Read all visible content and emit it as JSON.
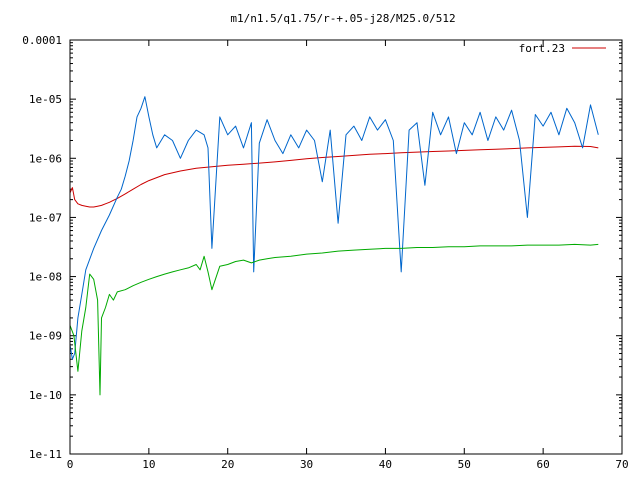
{
  "chart_data": {
    "type": "line",
    "title": "m1/n1.5/q1.75/r-+.05-j28/M25.0/512",
    "xlabel": "",
    "ylabel": "",
    "xlim": [
      0,
      70
    ],
    "ylim": [
      1e-11,
      0.0001
    ],
    "y_scale": "log",
    "grid": false,
    "legend_position": "top-right",
    "x_ticks": [
      "0",
      "10",
      "20",
      "30",
      "40",
      "50",
      "60",
      "70"
    ],
    "x_tick_values": [
      0,
      10,
      20,
      30,
      40,
      50,
      60,
      70
    ],
    "y_ticks": [
      "1e-11",
      "1e-10",
      "1e-09",
      "1e-08",
      "1e-07",
      "1e-06",
      "1e-05",
      "0.0001"
    ],
    "y_tick_values": [
      1e-11,
      1e-10,
      1e-09,
      1e-08,
      1e-07,
      1e-06,
      1e-05,
      0.0001
    ],
    "series": [
      {
        "name": "fort.23",
        "color": "#cc0000",
        "in_legend": true,
        "x": [
          0,
          0.3,
          0.6,
          1,
          1.5,
          2,
          2.5,
          3,
          3.5,
          4,
          4.5,
          5,
          5.5,
          6,
          7,
          8,
          9,
          10,
          12,
          14,
          16,
          18,
          20,
          22,
          24,
          26,
          28,
          30,
          32,
          34,
          36,
          38,
          40,
          42,
          44,
          46,
          48,
          50,
          52,
          54,
          56,
          58,
          60,
          62,
          64,
          66,
          67
        ],
        "y": [
          2.6e-07,
          3.2e-07,
          2e-07,
          1.7e-07,
          1.6e-07,
          1.55e-07,
          1.5e-07,
          1.5e-07,
          1.55e-07,
          1.6e-07,
          1.7e-07,
          1.8e-07,
          1.95e-07,
          2.1e-07,
          2.5e-07,
          3e-07,
          3.6e-07,
          4.2e-07,
          5.3e-07,
          6.1e-07,
          6.8e-07,
          7.2e-07,
          7.6e-07,
          7.9e-07,
          8.3e-07,
          8.7e-07,
          9.2e-07,
          9.8e-07,
          1.03e-06,
          1.07e-06,
          1.12e-06,
          1.17e-06,
          1.2e-06,
          1.24e-06,
          1.27e-06,
          1.3e-06,
          1.33e-06,
          1.36e-06,
          1.39e-06,
          1.42e-06,
          1.46e-06,
          1.5e-06,
          1.53e-06,
          1.56e-06,
          1.6e-06,
          1.58e-06,
          1.5e-06
        ]
      },
      {
        "name": "",
        "color": "#0066cc",
        "in_legend": false,
        "x": [
          0,
          0.3,
          0.6,
          1,
          1.5,
          2,
          3,
          4,
          5,
          6,
          6.5,
          7,
          7.5,
          8,
          8.5,
          9,
          9.5,
          10,
          10.5,
          11,
          12,
          13,
          14,
          15,
          16,
          17,
          17.5,
          18,
          19,
          20,
          21,
          22,
          23,
          23.3,
          24,
          25,
          26,
          27,
          28,
          29,
          30,
          31,
          32,
          33,
          34,
          35,
          36,
          37,
          38,
          39,
          40,
          41,
          42,
          43,
          44,
          45,
          46,
          47,
          48,
          49,
          50,
          51,
          52,
          53,
          54,
          55,
          56,
          57,
          58,
          59,
          60,
          61,
          62,
          63,
          64,
          65,
          66,
          67
        ],
        "y": [
          7e-10,
          4e-10,
          5e-10,
          2e-09,
          5e-09,
          1.3e-08,
          3e-08,
          6e-08,
          1.1e-07,
          2.2e-07,
          3e-07,
          5e-07,
          9e-07,
          2e-06,
          5e-06,
          7e-06,
          1.1e-05,
          5e-06,
          2.5e-06,
          1.5e-06,
          2.5e-06,
          2e-06,
          1e-06,
          2e-06,
          3e-06,
          2.5e-06,
          1.5e-06,
          3e-08,
          5e-06,
          2.5e-06,
          3.5e-06,
          1.5e-06,
          4e-06,
          1.2e-08,
          1.8e-06,
          4.5e-06,
          2e-06,
          1.2e-06,
          2.5e-06,
          1.5e-06,
          3e-06,
          2e-06,
          4e-07,
          3e-06,
          8e-08,
          2.5e-06,
          3.5e-06,
          2e-06,
          5e-06,
          3e-06,
          4.5e-06,
          2e-06,
          1.2e-08,
          3e-06,
          4e-06,
          3.5e-07,
          6e-06,
          2.5e-06,
          5e-06,
          1.2e-06,
          4e-06,
          2.5e-06,
          6e-06,
          2e-06,
          5e-06,
          3e-06,
          6.5e-06,
          2e-06,
          1e-07,
          5.5e-06,
          3.5e-06,
          6e-06,
          2.5e-06,
          7e-06,
          4e-06,
          1.5e-06,
          8e-06,
          2.5e-06
        ]
      },
      {
        "name": "",
        "color": "#00aa00",
        "in_legend": false,
        "x": [
          0,
          0.5,
          1,
          1.5,
          2,
          2.5,
          3,
          3.5,
          3.8,
          4,
          4.5,
          5,
          5.5,
          6,
          7,
          8,
          9,
          10,
          11,
          12,
          13,
          14,
          15,
          16,
          16.5,
          17,
          17.5,
          18,
          19,
          20,
          21,
          22,
          23,
          24,
          25,
          26,
          28,
          30,
          32,
          34,
          36,
          38,
          40,
          42,
          44,
          46,
          48,
          50,
          52,
          54,
          56,
          58,
          60,
          62,
          64,
          66,
          67
        ],
        "y": [
          1.5e-09,
          1e-09,
          2.5e-10,
          1.2e-09,
          3e-09,
          1.1e-08,
          9e-09,
          4e-09,
          1e-10,
          2e-09,
          3e-09,
          5e-09,
          4e-09,
          5.5e-09,
          6e-09,
          7e-09,
          8e-09,
          9e-09,
          1e-08,
          1.1e-08,
          1.2e-08,
          1.3e-08,
          1.4e-08,
          1.6e-08,
          1.3e-08,
          2.2e-08,
          1.2e-08,
          6e-09,
          1.5e-08,
          1.6e-08,
          1.8e-08,
          1.9e-08,
          1.7e-08,
          1.9e-08,
          2e-08,
          2.1e-08,
          2.2e-08,
          2.4e-08,
          2.5e-08,
          2.7e-08,
          2.8e-08,
          2.9e-08,
          3e-08,
          3e-08,
          3.1e-08,
          3.1e-08,
          3.2e-08,
          3.2e-08,
          3.3e-08,
          3.3e-08,
          3.3e-08,
          3.4e-08,
          3.4e-08,
          3.4e-08,
          3.5e-08,
          3.4e-08,
          3.5e-08
        ]
      }
    ]
  }
}
